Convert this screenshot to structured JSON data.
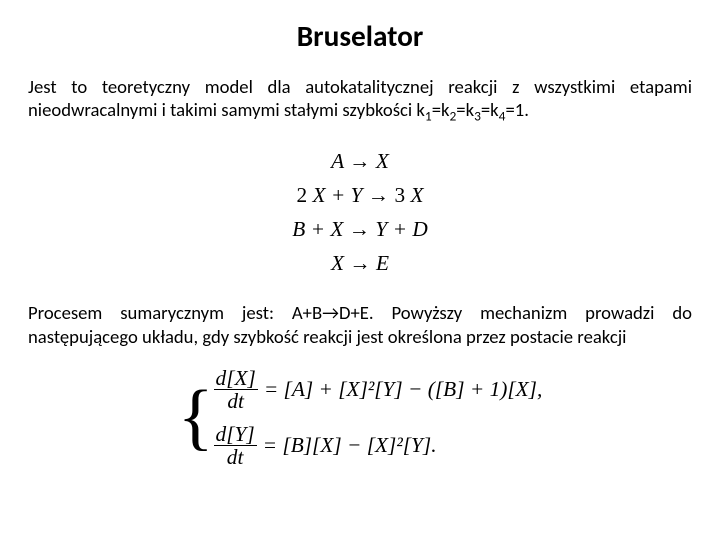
{
  "title": {
    "text": "Bruselator",
    "fontsize_pt": 22,
    "font_weight": 700,
    "color": "#000000"
  },
  "body_fontsize_pt": 14,
  "body_color": "#000000",
  "background_color": "#ffffff",
  "para1": "Jest to teoretyczny model dla autokatalitycznej reakcji z wszystkimi etapami nieodwracalnymi i takimi samymi stałymi szybkości k",
  "para1_sub_run": "1=k2=k3=k4=1.",
  "k_sub": {
    "k1": "1",
    "k2": "2",
    "k3": "3",
    "k4": "4"
  },
  "reactions": {
    "fontsize_pt": 16,
    "font_family": "Times New Roman",
    "r1_left": "A",
    "r1_right": "X",
    "r2_left_coef": "2",
    "r2_left_sym": "X + Y",
    "r2_right_coef": "3",
    "r2_right_sym": "X",
    "r3_left": "B + X",
    "r3_right": "Y + D",
    "r4_left": "X",
    "r4_right": "E",
    "arrow": "→"
  },
  "para2_a": "Procesem sumarycznym jest: A+B",
  "para2_arrow": "→",
  "para2_b": "D+E. Powyższy mechanizm prowadzi do następującego układu, gdy szybkość reakcji jest określona przez postacie reakcji",
  "system": {
    "fontsize_pt": 16,
    "brace_fontsize_pt": 56,
    "brace": "{",
    "eq1": {
      "frac_top": "d[X]",
      "frac_bot": "dt",
      "rhs": "= [A] + [X]²[Y] − ([B] + 1)[X],"
    },
    "eq2": {
      "frac_top": "d[Y]",
      "frac_bot": "dt",
      "rhs": "= [B][X] − [X]²[Y]."
    }
  }
}
